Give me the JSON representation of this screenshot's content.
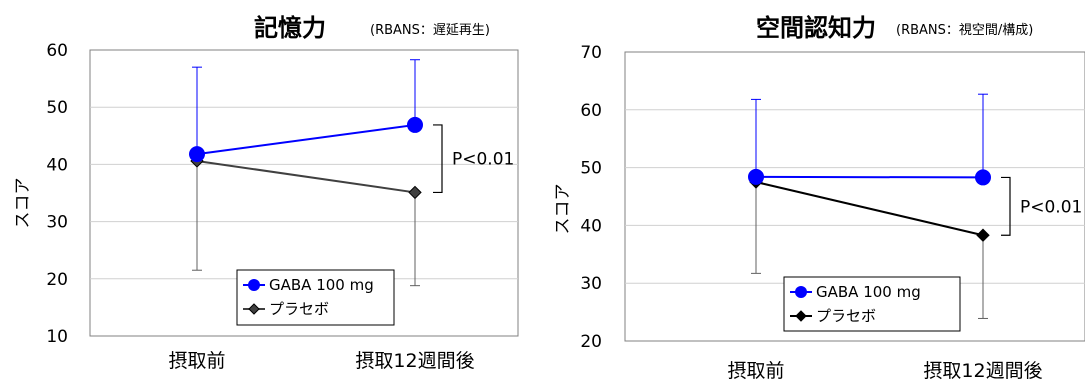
{
  "chart_data": [
    {
      "type": "line",
      "title": "記憶力",
      "subtitle": "(RBANS：遅延再生)",
      "ylabel": "スコア",
      "categories": [
        "摂取前",
        "摂取12週間後"
      ],
      "ylim": [
        10,
        60
      ],
      "yticks": [
        10,
        20,
        30,
        40,
        50,
        60
      ],
      "series": [
        {
          "name": "GABA 100 mg",
          "values": [
            41.8,
            46.9
          ],
          "error_upper": [
            57.0,
            58.3
          ],
          "color": "#0000ff",
          "marker": "circle"
        },
        {
          "name": "プラセボ",
          "values": [
            40.6,
            35.1
          ],
          "error_lower": [
            21.5,
            18.8
          ],
          "color": "#404040",
          "marker": "diamond"
        }
      ],
      "annotation": "P<0.01",
      "legend": "bottom-center",
      "grid": true
    },
    {
      "type": "line",
      "title": "空間認知力",
      "subtitle": "(RBANS：視空間/構成)",
      "ylabel": "スコア",
      "categories": [
        "摂取前",
        "摂取12週間後"
      ],
      "ylim": [
        20,
        70
      ],
      "yticks": [
        20,
        30,
        40,
        50,
        60,
        70
      ],
      "series": [
        {
          "name": "GABA 100 mg",
          "values": [
            48.4,
            48.3
          ],
          "error_upper": [
            61.8,
            62.7
          ],
          "color": "#0000ff",
          "marker": "circle"
        },
        {
          "name": "プラセボ",
          "values": [
            47.5,
            38.3
          ],
          "error_lower": [
            31.7,
            23.9
          ],
          "color": "#000000",
          "marker": "diamond"
        }
      ],
      "annotation": "P<0.01",
      "legend": "bottom-center",
      "grid": true
    }
  ]
}
